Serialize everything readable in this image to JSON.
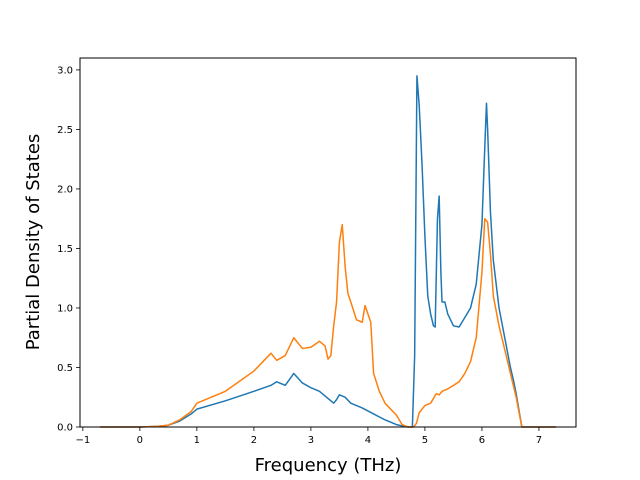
{
  "chart_data": {
    "type": "line",
    "title": "",
    "xlabel": "Frequency (THz)",
    "ylabel": "Partial Density of States",
    "xlim": [
      -1.05,
      7.65
    ],
    "ylim": [
      0,
      3.1
    ],
    "xticks": [
      -1,
      0,
      1,
      2,
      3,
      4,
      5,
      6,
      7
    ],
    "xtick_labels": [
      "−1",
      "0",
      "1",
      "2",
      "3",
      "4",
      "5",
      "6",
      "7"
    ],
    "yticks": [
      0,
      0.5,
      1.0,
      1.5,
      2.0,
      2.5,
      3.0
    ],
    "ytick_labels": [
      "0.0",
      "0.5",
      "1.0",
      "1.5",
      "2.0",
      "2.5",
      "3.0"
    ],
    "grid": false,
    "legend": "none",
    "series": [
      {
        "color": "#1f77b4",
        "x": [
          -0.7,
          0.0,
          0.3,
          0.5,
          0.7,
          0.9,
          1.0,
          1.5,
          2.0,
          2.3,
          2.4,
          2.55,
          2.7,
          2.85,
          3.0,
          3.15,
          3.3,
          3.4,
          3.45,
          3.5,
          3.6,
          3.7,
          3.9,
          4.1,
          4.3,
          4.5,
          4.6,
          4.7,
          4.78,
          4.82,
          4.86,
          4.9,
          4.95,
          5.0,
          5.05,
          5.1,
          5.15,
          5.18,
          5.22,
          5.25,
          5.28,
          5.3,
          5.35,
          5.4,
          5.5,
          5.6,
          5.7,
          5.8,
          5.9,
          6.0,
          6.05,
          6.08,
          6.1,
          6.15,
          6.2,
          6.3,
          6.4,
          6.5,
          6.55,
          6.6,
          6.7,
          7.0,
          7.3
        ],
        "values": [
          0.0,
          0.0,
          0.005,
          0.015,
          0.05,
          0.11,
          0.15,
          0.22,
          0.3,
          0.35,
          0.38,
          0.35,
          0.45,
          0.37,
          0.33,
          0.3,
          0.24,
          0.2,
          0.23,
          0.27,
          0.25,
          0.2,
          0.16,
          0.11,
          0.06,
          0.02,
          0.01,
          0.0,
          0.0,
          0.6,
          2.95,
          2.7,
          2.2,
          1.6,
          1.1,
          0.95,
          0.85,
          0.84,
          1.75,
          1.94,
          1.3,
          1.05,
          1.05,
          0.95,
          0.85,
          0.84,
          0.92,
          1.0,
          1.2,
          1.7,
          2.35,
          2.72,
          2.5,
          1.8,
          1.4,
          1.0,
          0.75,
          0.5,
          0.4,
          0.28,
          0.0,
          0.0,
          0.0
        ]
      },
      {
        "color": "#ff7f0e",
        "x": [
          -0.7,
          0.0,
          0.3,
          0.5,
          0.7,
          0.9,
          1.0,
          1.5,
          2.0,
          2.3,
          2.4,
          2.55,
          2.7,
          2.85,
          3.0,
          3.15,
          3.25,
          3.3,
          3.35,
          3.4,
          3.45,
          3.5,
          3.55,
          3.6,
          3.65,
          3.7,
          3.8,
          3.9,
          3.95,
          4.0,
          4.05,
          4.1,
          4.2,
          4.3,
          4.5,
          4.6,
          4.7,
          4.8,
          4.85,
          4.9,
          5.0,
          5.1,
          5.2,
          5.25,
          5.3,
          5.4,
          5.5,
          5.6,
          5.7,
          5.8,
          5.9,
          6.0,
          6.05,
          6.1,
          6.15,
          6.2,
          6.3,
          6.4,
          6.5,
          6.55,
          6.6,
          6.7,
          7.0,
          7.3
        ],
        "values": [
          0.0,
          0.0,
          0.005,
          0.015,
          0.06,
          0.13,
          0.2,
          0.3,
          0.47,
          0.62,
          0.56,
          0.6,
          0.75,
          0.66,
          0.67,
          0.72,
          0.68,
          0.57,
          0.6,
          0.85,
          1.05,
          1.55,
          1.7,
          1.35,
          1.12,
          1.05,
          0.9,
          0.88,
          1.02,
          0.95,
          0.88,
          0.45,
          0.3,
          0.2,
          0.1,
          0.02,
          0.0,
          0.0,
          0.03,
          0.12,
          0.18,
          0.2,
          0.28,
          0.27,
          0.3,
          0.32,
          0.35,
          0.38,
          0.45,
          0.55,
          0.75,
          1.3,
          1.75,
          1.72,
          1.45,
          1.1,
          0.85,
          0.65,
          0.45,
          0.35,
          0.25,
          0.0,
          0.0,
          0.0
        ]
      }
    ]
  }
}
